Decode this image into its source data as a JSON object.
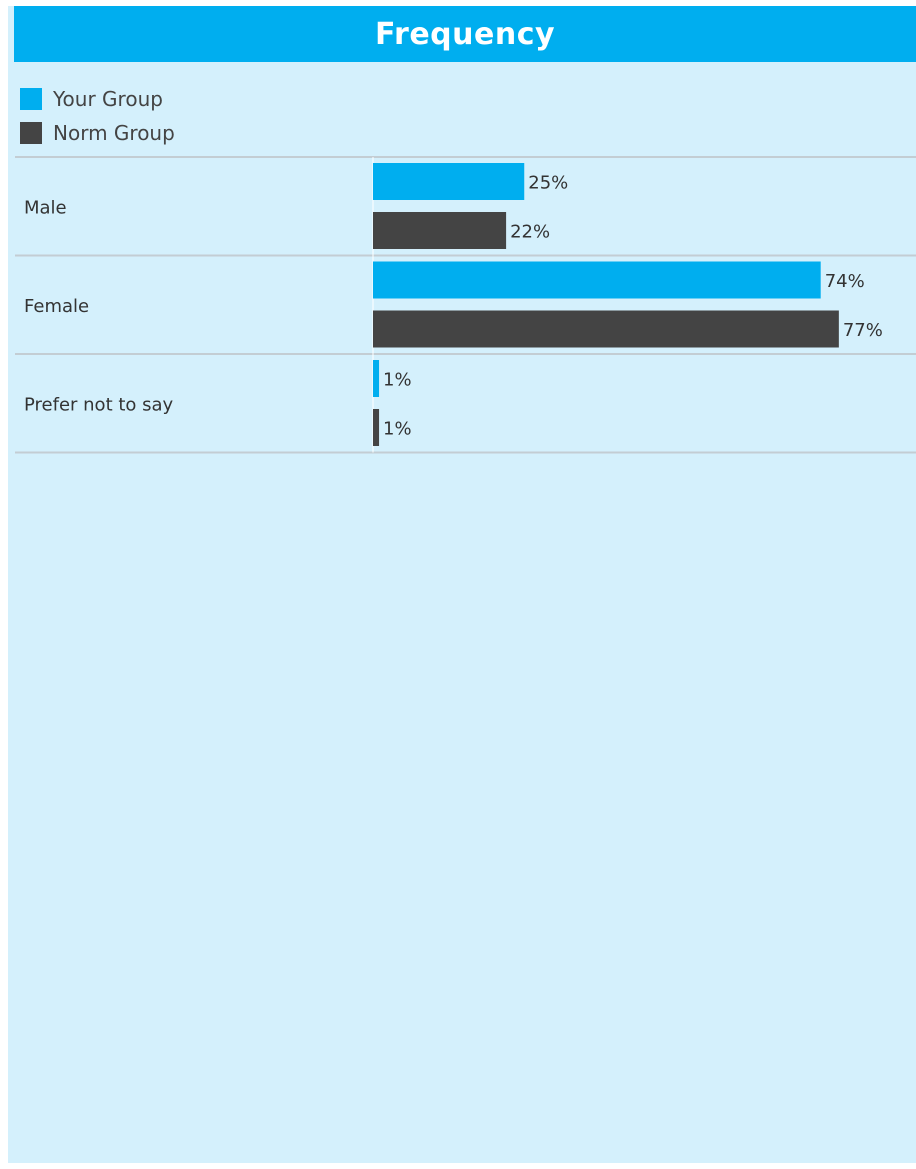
{
  "chart_data": {
    "type": "bar",
    "orientation": "horizontal",
    "title": "Frequency",
    "categories": [
      "Male",
      "Female",
      "Prefer not to say"
    ],
    "series": [
      {
        "name": "Your Group",
        "color": "#00aeef",
        "values": [
          25,
          74,
          1
        ],
        "labels": [
          "25%",
          "74%",
          "1%"
        ]
      },
      {
        "name": "Norm Group",
        "color": "#444444",
        "values": [
          22,
          77,
          1
        ],
        "labels": [
          "22%",
          "77%",
          "1%"
        ]
      }
    ],
    "xlim": [
      0,
      100
    ],
    "legend_position": "top-left",
    "grid": false
  }
}
